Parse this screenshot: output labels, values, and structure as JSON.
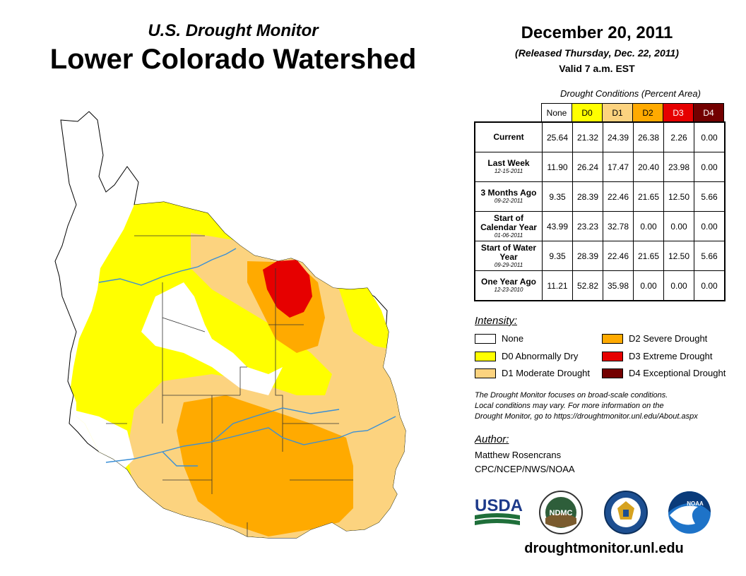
{
  "header": {
    "top_title": "U.S. Drought Monitor",
    "main_title": "Lower Colorado Watershed",
    "date": "December 20, 2011",
    "released": "(Released Thursday, Dec. 22, 2011)",
    "valid": "Valid 7 a.m. EST"
  },
  "table": {
    "caption": "Drought Conditions (Percent Area)",
    "columns": [
      {
        "label": "None",
        "color": "#ffffff"
      },
      {
        "label": "D0",
        "color": "#ffff00"
      },
      {
        "label": "D1",
        "color": "#fcd37f"
      },
      {
        "label": "D2",
        "color": "#ffaa00"
      },
      {
        "label": "D3",
        "color": "#e60000"
      },
      {
        "label": "D4",
        "color": "#730000"
      }
    ],
    "rows": [
      {
        "label": "Current",
        "sub": "",
        "values": [
          "25.64",
          "21.32",
          "24.39",
          "26.38",
          "2.26",
          "0.00"
        ]
      },
      {
        "label": "Last Week",
        "sub": "12-15-2011",
        "values": [
          "11.90",
          "26.24",
          "17.47",
          "20.40",
          "23.98",
          "0.00"
        ]
      },
      {
        "label": "3 Months Ago",
        "sub": "09-22-2011",
        "values": [
          "9.35",
          "28.39",
          "22.46",
          "21.65",
          "12.50",
          "5.66"
        ]
      },
      {
        "label": "Start of Calendar Year",
        "sub": "01-06-2011",
        "values": [
          "43.99",
          "23.23",
          "32.78",
          "0.00",
          "0.00",
          "0.00"
        ]
      },
      {
        "label": "Start of Water Year",
        "sub": "09-29-2011",
        "values": [
          "9.35",
          "28.39",
          "22.46",
          "21.65",
          "12.50",
          "5.66"
        ]
      },
      {
        "label": "One Year Ago",
        "sub": "12-23-2010",
        "values": [
          "11.21",
          "52.82",
          "35.98",
          "0.00",
          "0.00",
          "0.00"
        ]
      }
    ]
  },
  "legend": {
    "heading": "Intensity:",
    "items": [
      {
        "label": "None",
        "color": "#ffffff"
      },
      {
        "label": "D0 Abnormally Dry",
        "color": "#ffff00"
      },
      {
        "label": "D1 Moderate Drought",
        "color": "#fcd37f"
      },
      {
        "label": "D2 Severe Drought",
        "color": "#ffaa00"
      },
      {
        "label": "D3 Extreme Drought",
        "color": "#e60000"
      },
      {
        "label": "D4 Exceptional Drought",
        "color": "#730000"
      }
    ]
  },
  "note": {
    "line1": "The Drought Monitor focuses on broad-scale conditions.",
    "line2": "Local conditions may vary. For more information on the",
    "line3": "Drought Monitor, go to https://droughtmonitor.unl.edu/About.aspx"
  },
  "author": {
    "heading": "Author:",
    "name": "Matthew Rosencrans",
    "org": "CPC/NCEP/NWS/NOAA"
  },
  "logos": {
    "usda": "USDA",
    "ndmc": "NDMC",
    "noaa": "NOAA"
  },
  "site": "droughtmonitor.unl.edu"
}
